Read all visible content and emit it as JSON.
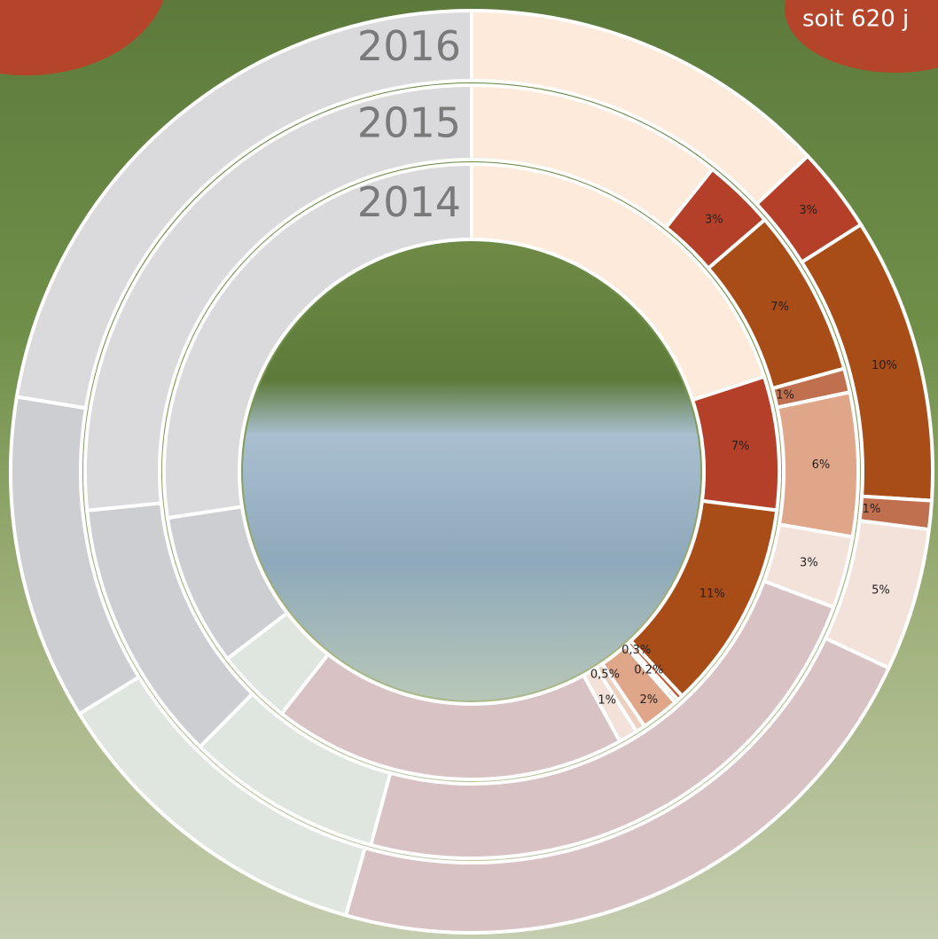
{
  "chart_data": {
    "type": "donut",
    "corner_note": "soit 620 j",
    "series": [
      {
        "name": "2014",
        "values": [
          20,
          7,
          11,
          0.3,
          0.2,
          2,
          0.5,
          1,
          18.6,
          4,
          8,
          27.4
        ],
        "value_labels": [
          null,
          "7%",
          "11%",
          "0,3%",
          "0,2%",
          "2%",
          "0,5%",
          "1%",
          null,
          null,
          null,
          null
        ],
        "colors": [
          "#fdeadb",
          "#b5402a",
          "#a84c18",
          "#c9562e",
          "#c46b3f",
          "#e0a68a",
          "#edd0c0",
          "#f3e2da",
          "#d8c2c4",
          "#dfe5df",
          "#cdced2",
          "#dadadc"
        ]
      },
      {
        "name": "2015",
        "values": [
          10.7,
          3,
          7,
          1,
          6,
          3,
          23.5,
          8.2,
          11,
          26.6
        ],
        "value_labels": [
          null,
          "3%",
          "7%",
          "1%",
          "6%",
          "3%",
          null,
          null,
          null,
          null
        ],
        "colors": [
          "#fdeadb",
          "#b5402a",
          "#a84c18",
          "#c0704f",
          "#e0a68a",
          "#f3e2da",
          "#d8c2c4",
          "#dfe5df",
          "#cdced2",
          "#dadadc"
        ]
      },
      {
        "name": "2016",
        "values": [
          13,
          3,
          10,
          1,
          5,
          22.4,
          11.8,
          11.4,
          22.4
        ],
        "value_labels": [
          null,
          "3%",
          "10%",
          "1%",
          "5%",
          null,
          null,
          null,
          null
        ],
        "colors": [
          "#fdeadb",
          "#b5402a",
          "#a84c18",
          "#c0704f",
          "#f3e2da",
          "#d8c2c4",
          "#dfe5df",
          "#cdced2",
          "#dadadc"
        ]
      }
    ]
  }
}
